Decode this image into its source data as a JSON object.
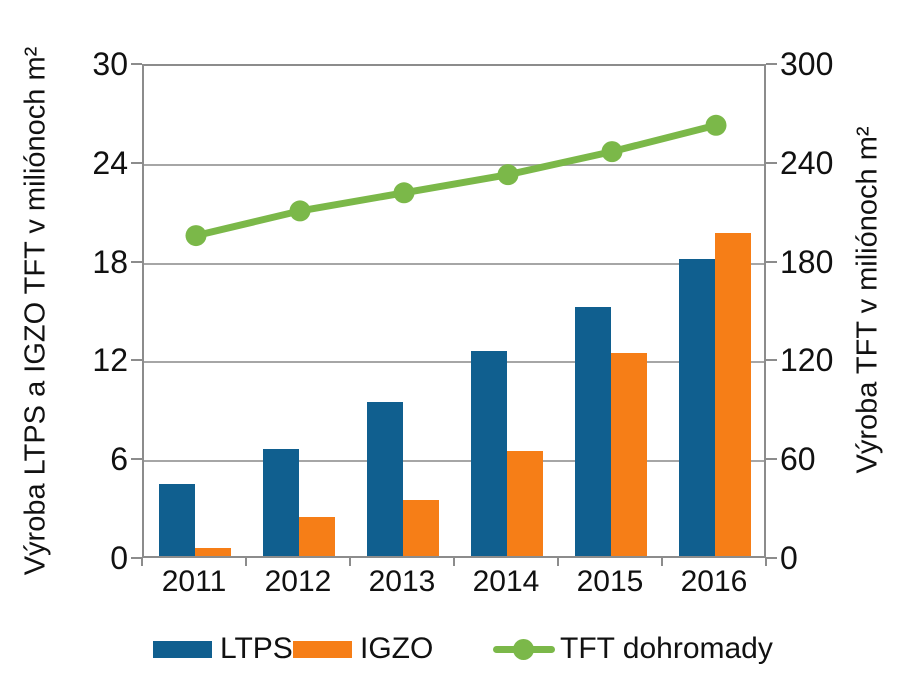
{
  "chart_data": {
    "type": "bar+line",
    "title": "",
    "categories": [
      "2011",
      "2012",
      "2013",
      "2014",
      "2015",
      "2016"
    ],
    "series": [
      {
        "name": "LTPS",
        "type": "bar",
        "axis": "left",
        "color": "#105f8f",
        "values": [
          4.4,
          6.5,
          9.4,
          12.5,
          15.2,
          18.1
        ]
      },
      {
        "name": "IGZO",
        "type": "bar",
        "axis": "left",
        "color": "#f67e17",
        "values": [
          0.5,
          2.4,
          3.4,
          6.4,
          12.4,
          19.7
        ]
      },
      {
        "name": "TFT dohromady",
        "type": "line",
        "axis": "right",
        "color": "#7bb849",
        "values": [
          197,
          212,
          223,
          234,
          248,
          264
        ]
      }
    ],
    "left_axis": {
      "label": "Výroba LTPS a IGZO TFT v miliónoch m²",
      "ticks": [
        0,
        6,
        12,
        18,
        24,
        30
      ],
      "range": [
        0,
        30
      ]
    },
    "right_axis": {
      "label": "Výroba TFT v miliónoch m²",
      "ticks": [
        0,
        60,
        120,
        180,
        240,
        300
      ],
      "range": [
        0,
        300
      ]
    },
    "grid": true,
    "legend_position": "bottom",
    "colors": {
      "gridline": "#a6a6a6",
      "axis": "#8c8c8c",
      "text": "#111111",
      "background": "#ffffff"
    }
  }
}
